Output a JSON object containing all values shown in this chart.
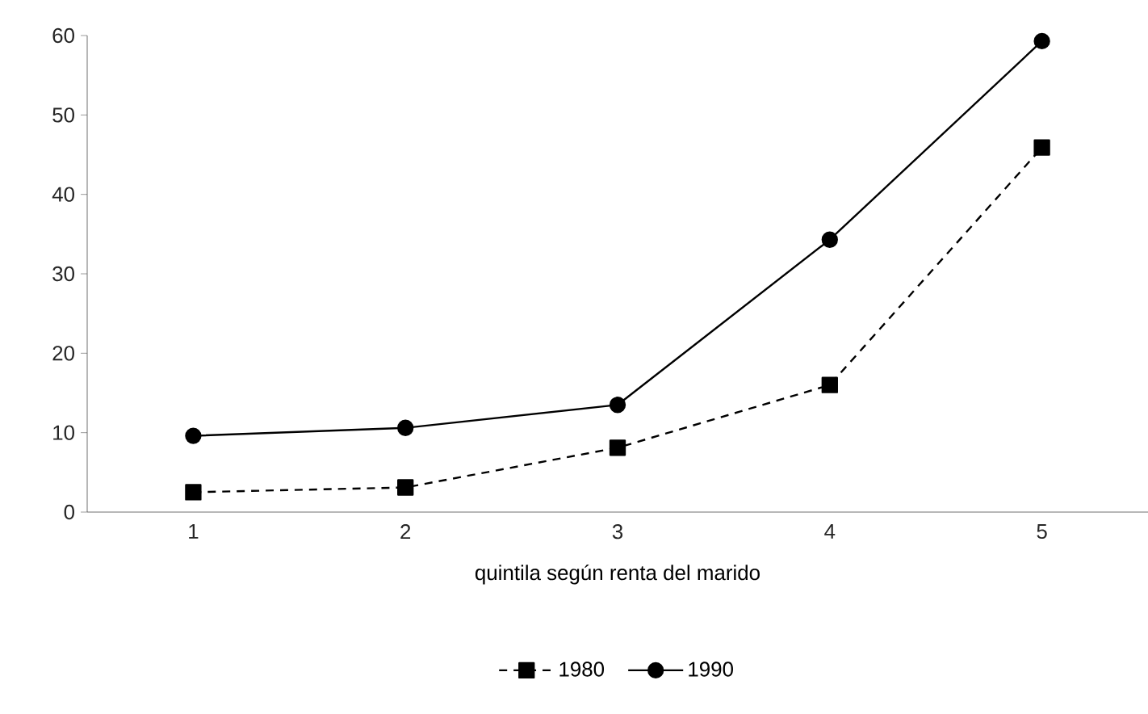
{
  "chart_data": {
    "type": "line",
    "xlabel": "quintila según renta del marido",
    "categories": [
      "1",
      "2",
      "3",
      "4",
      "5"
    ],
    "series": [
      {
        "name": "1980",
        "color": "#000000",
        "values": [
          2.5,
          3.1,
          8.1,
          16.0,
          45.9
        ],
        "marker": "square",
        "line_style": "dashed"
      },
      {
        "name": "1990",
        "color": "#000000",
        "values": [
          9.6,
          10.6,
          13.5,
          34.3,
          59.3
        ],
        "marker": "circle",
        "line_style": "solid"
      }
    ],
    "ylim": [
      0,
      60
    ],
    "yticks": [
      0,
      10,
      20,
      30,
      40,
      50,
      60
    ],
    "grid": false,
    "legend": "bottom"
  }
}
